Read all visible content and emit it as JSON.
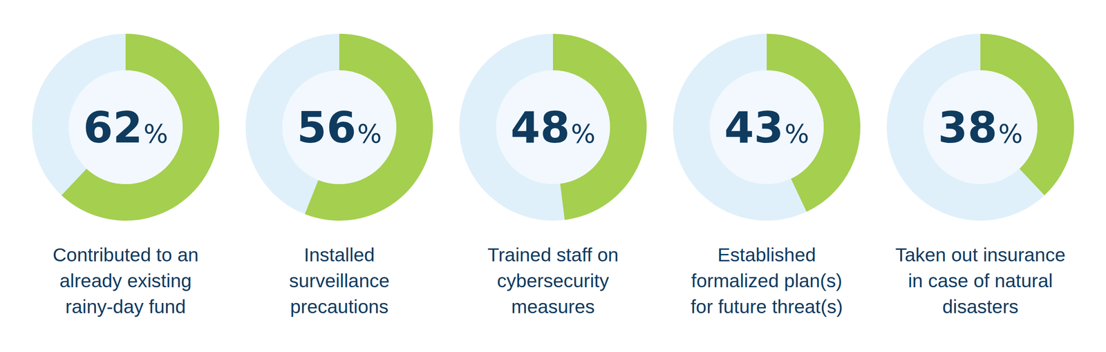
{
  "chart_data": {
    "type": "donut",
    "categories": [
      "Contributed to an\nalready existing\nrainy-day fund",
      "Installed\nsurveillance\nprecautions",
      "Trained staff on\ncybersecurity\nmeasures",
      "Established\nformalized plan(s)\nfor future threat(s)",
      "Taken out insurance\nin case of natural\ndisasters"
    ],
    "values": [
      62,
      56,
      48,
      43,
      38
    ],
    "value_labels": [
      "62%",
      "56%",
      "48%",
      "43%",
      "38%"
    ],
    "color": "#a5cf4e",
    "data_labels": true
  }
}
